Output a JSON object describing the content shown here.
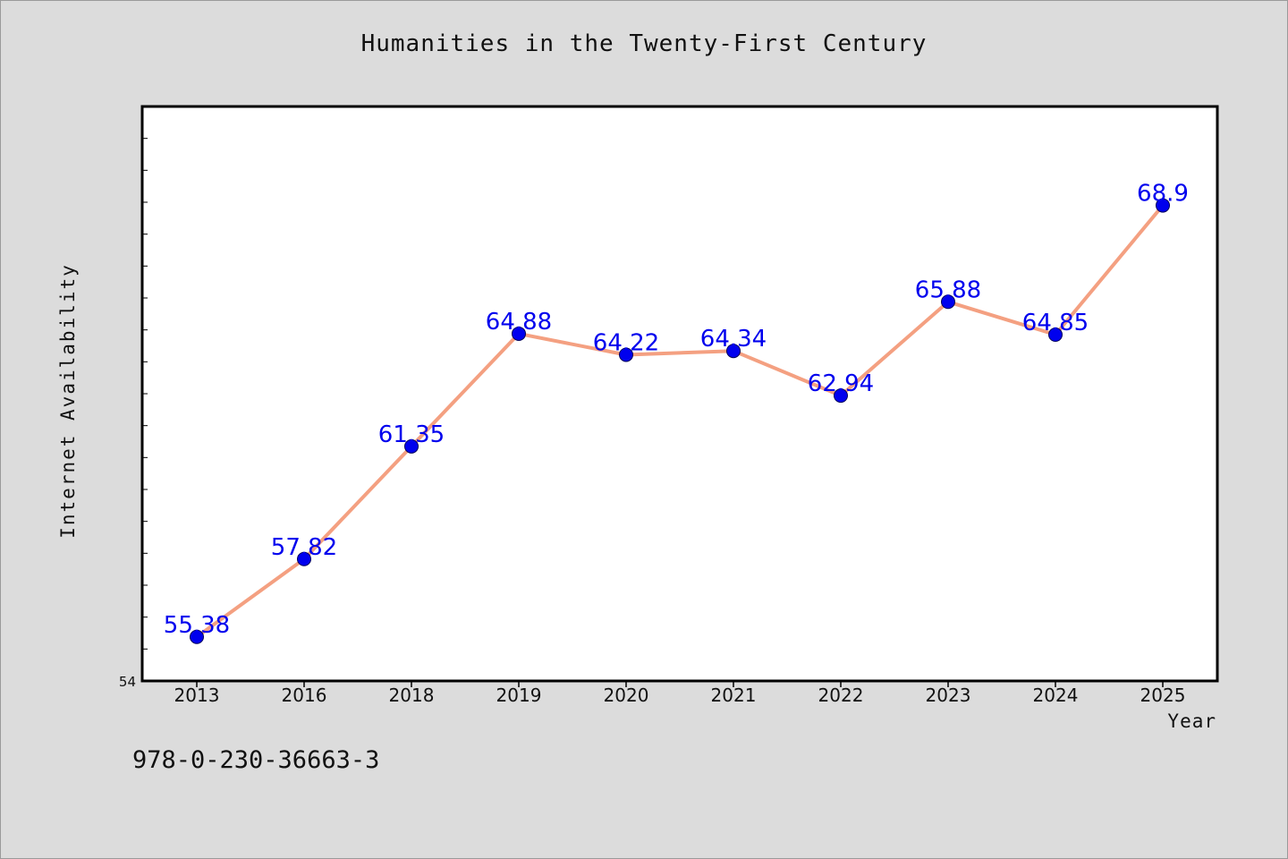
{
  "footer": {
    "isbn": "978-0-230-36663-3"
  },
  "chart_data": {
    "type": "line",
    "title": "Humanities in the Twenty-First Century",
    "xlabel": "Year",
    "ylabel": "Internet Availability",
    "categories": [
      "2013",
      "2016",
      "2018",
      "2019",
      "2020",
      "2021",
      "2022",
      "2023",
      "2024",
      "2025"
    ],
    "series": [
      {
        "values": [
          55.38,
          57.82,
          61.35,
          64.88,
          64.22,
          64.34,
          62.94,
          65.88,
          64.85,
          68.9
        ],
        "line_color": "#f4a081",
        "marker_color": "#0000ee",
        "label_color": "#0000ee"
      }
    ],
    "data_labels": [
      "55.38",
      "57.82",
      "61.35",
      "64.88",
      "64.22",
      "64.34",
      "62.94",
      "65.88",
      "64.85",
      "68.9"
    ],
    "ylim": [
      54,
      72
    ],
    "y_tick_labels": [
      "54"
    ],
    "grid": false,
    "legend": "none"
  }
}
